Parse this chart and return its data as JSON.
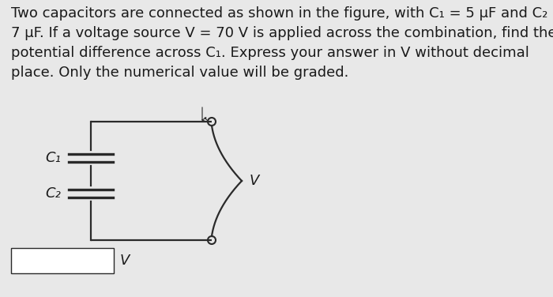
{
  "background_color": "#e8e8e8",
  "text_color": "#1a1a1a",
  "title_text": "Two capacitors are connected as shown in the figure, with C₁ = 5 μF and C₂ =\n7 μF. If a voltage source V = 70 V is applied across the combination, find the\npotential difference across C₁. Express your answer in V without decimal\nplace. Only the numerical value will be graded.",
  "font_size_body": 13.0,
  "c1_label": "C₁",
  "c2_label": "C₂",
  "v_label": "V",
  "v_label2": "V",
  "answer_box_color": "#ffffff",
  "circuit_color": "#2a2a2a",
  "line_width": 1.6,
  "cap_lw": 2.4
}
